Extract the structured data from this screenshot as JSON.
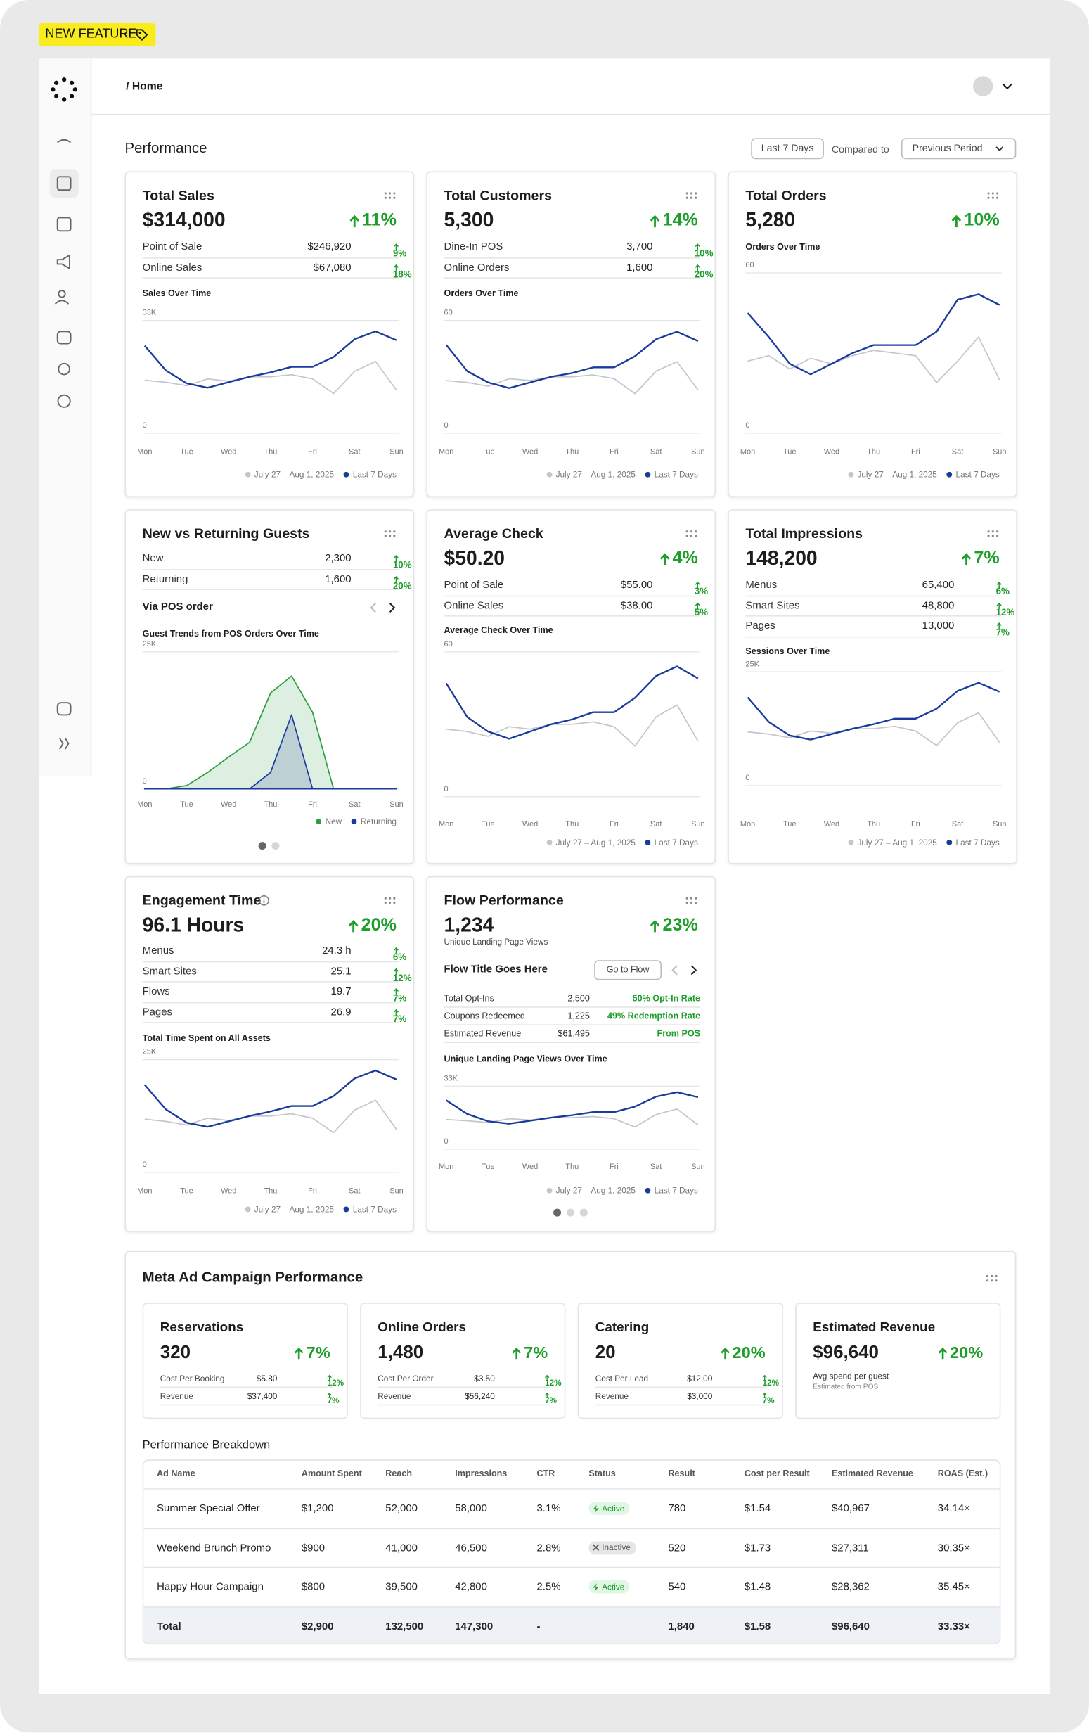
{
  "badge": "NEW FEATURE",
  "breadcrumb": "/ Home",
  "performance": {
    "title": "Performance",
    "range": "Last 7 Days",
    "compared_label": "Compared to",
    "compare": "Previous Period"
  },
  "cards": [
    {
      "title": "Total Sales",
      "value": "$314,000",
      "change": "11%",
      "rows": [
        {
          "label": "Point of Sale",
          "value": "$246,920",
          "change": "9%"
        },
        {
          "label": "Online Sales",
          "value": "$67,080",
          "change": "18%"
        }
      ],
      "chart": {
        "type": "line",
        "title": "Sales Over Time",
        "categories": [
          "Mon",
          null,
          "Tue",
          null,
          "Wed",
          null,
          "Thu",
          null,
          "Fri",
          null,
          "Sat",
          null,
          "Sun"
        ],
        "ylim": [
          0,
          33000
        ],
        "yticks": [
          0,
          {
            "value": 33000,
            "label": "33K"
          }
        ],
        "grid": true,
        "series": [
          {
            "name": "July 27 – Aug 1, 2025",
            "color": "#c3c6cc",
            "values": [
              15500,
              14900,
              13900,
              15900,
              15200,
              16500,
              16500,
              17100,
              15900,
              11600,
              18100,
              21000,
              12600
            ]
          },
          {
            "name": "Last 7 Days",
            "color": "#1a3a9c",
            "values": [
              25600,
              18400,
              14600,
              13300,
              14900,
              16500,
              17800,
              19400,
              19400,
              22300,
              27500,
              29800,
              27200
            ]
          }
        ]
      }
    },
    {
      "title": "Total Customers",
      "value": "5,300",
      "change": "14%",
      "rows": [
        {
          "label": "Dine-In POS",
          "value": "3,700",
          "change": "10%"
        },
        {
          "label": "Online Orders",
          "value": "1,600",
          "change": "20%"
        }
      ],
      "chart": {
        "type": "line",
        "title": "Orders Over Time",
        "categories": [
          "Mon",
          null,
          "Tue",
          null,
          "Wed",
          null,
          "Thu",
          null,
          "Fri",
          null,
          "Sat",
          null,
          "Sun"
        ],
        "ylim": [
          0,
          60
        ],
        "yticks": [
          0,
          60
        ],
        "grid": true,
        "series": [
          {
            "name": "July 27 – Aug 1, 2025",
            "color": "#c3c6cc",
            "values": [
              28,
              27,
              25,
              29,
              28,
              30,
              30,
              31,
              29,
              21,
              33,
              38,
              23
            ]
          },
          {
            "name": "Last 7 Days",
            "color": "#1a3a9c",
            "values": [
              47,
              33,
              27,
              24,
              27,
              30,
              32,
              35,
              35,
              41,
              50,
              54,
              49
            ]
          }
        ]
      }
    },
    {
      "title": "Total Orders",
      "value": "5,280",
      "change": "10%",
      "chart": {
        "type": "line",
        "title": "Orders Over Time",
        "categories": [
          "Mon",
          null,
          "Tue",
          null,
          "Wed",
          null,
          "Thu",
          null,
          "Fri",
          null,
          "Sat",
          null,
          "Sun"
        ],
        "ylim": [
          0,
          60
        ],
        "yticks": [
          0,
          60
        ],
        "grid": true,
        "series": [
          {
            "name": "July 27 – Aug 1, 2025",
            "color": "#c3c6cc",
            "values": [
              27,
              29,
              24,
              28,
              26,
              29,
              31,
              30,
              29,
              19,
              27,
              36,
              20
            ]
          },
          {
            "name": "Last 7 Days",
            "color": "#1a3a9c",
            "values": [
              45,
              36,
              26,
              22,
              26,
              30,
              33,
              33,
              33,
              38,
              50,
              52,
              48
            ]
          }
        ]
      }
    },
    {
      "title": "New vs Returning Guests",
      "rows": [
        {
          "label": "New",
          "value": "2,300",
          "change": "10%"
        },
        {
          "label": "Returning",
          "value": "1,600",
          "change": "20%"
        }
      ],
      "via": "Via POS order",
      "chart": {
        "type": "area",
        "title": "Guest Trends from POS Orders Over Time",
        "categories": [
          "Mon",
          null,
          "Tue",
          null,
          "Wed",
          null,
          "Thu",
          null,
          "Fri",
          null,
          "Sat",
          null,
          "Sun"
        ],
        "ylim": [
          0,
          25000
        ],
        "yticks": [
          0,
          {
            "value": 25000,
            "label": "25K"
          }
        ],
        "grid": true,
        "series": [
          {
            "name": "New",
            "color": "#2e9e3e",
            "values": [
              0,
              0,
              600,
              3000,
              5800,
              8500,
              17500,
              20600,
              14000,
              0,
              0,
              0,
              0
            ]
          },
          {
            "name": "Returning",
            "color": "#1a3a9c",
            "values": [
              0,
              0,
              0,
              0,
              0,
              0,
              3000,
              13500,
              0,
              0,
              0,
              0,
              0
            ]
          }
        ]
      }
    },
    {
      "title": "Average Check",
      "value": "$50.20",
      "change": "4%",
      "rows": [
        {
          "label": "Point of Sale",
          "value": "$55.00",
          "change": "3%"
        },
        {
          "label": "Online Sales",
          "value": "$38.00",
          "change": "5%"
        }
      ],
      "chart": {
        "type": "line",
        "title": "Average Check Over Time",
        "categories": [
          "Mon",
          null,
          "Tue",
          null,
          "Wed",
          null,
          "Thu",
          null,
          "Fri",
          null,
          "Sat",
          null,
          "Sun"
        ],
        "ylim": [
          0,
          60
        ],
        "yticks": [
          0,
          60
        ],
        "grid": true,
        "series": [
          {
            "name": "July 27 – Aug 1, 2025",
            "color": "#c3c6cc",
            "values": [
              28,
              27,
              25,
              29,
              28,
              30,
              30,
              31,
              29,
              21,
              33,
              38,
              23
            ]
          },
          {
            "name": "Last 7 Days",
            "color": "#1a3a9c",
            "values": [
              47,
              33,
              27,
              24,
              27,
              30,
              32,
              35,
              35,
              41,
              50,
              54,
              49
            ]
          }
        ]
      }
    },
    {
      "title": "Total Impressions",
      "value": "148,200",
      "change": "7%",
      "rows": [
        {
          "label": "Menus",
          "value": "65,400",
          "change": "6%"
        },
        {
          "label": "Smart Sites",
          "value": "48,800",
          "change": "12%"
        },
        {
          "label": "Pages",
          "value": "13,000",
          "change": "7%"
        }
      ],
      "chart": {
        "type": "line",
        "title": "Sessions Over Time",
        "categories": [
          "Mon",
          null,
          "Tue",
          null,
          "Wed",
          null,
          "Thu",
          null,
          "Fri",
          null,
          "Sat",
          null,
          "Sun"
        ],
        "ylim": [
          0,
          25000
        ],
        "yticks": [
          0,
          {
            "value": 25000,
            "label": "25K"
          }
        ],
        "grid": true,
        "series": [
          {
            "name": "July 27 – Aug 1, 2025",
            "color": "#c3c6cc",
            "values": [
              11800,
              11300,
              10500,
              12000,
              11500,
              12500,
              12500,
              13000,
              12000,
              8800,
              13800,
              16000,
              9500
            ]
          },
          {
            "name": "Last 7 Days",
            "color": "#1a3a9c",
            "values": [
              19400,
              14000,
              11000,
              10100,
              11300,
              12500,
              13500,
              14700,
              14700,
              16900,
              20800,
              22600,
              20600
            ]
          }
        ]
      }
    },
    {
      "title": "Engagement Time",
      "value": "96.1 Hours",
      "change": "20%",
      "rows": [
        {
          "label": "Menus",
          "value": "24.3 h",
          "change": "6%"
        },
        {
          "label": "Smart Sites",
          "value": "25.1",
          "change": "12%"
        },
        {
          "label": "Flows",
          "value": "19.7",
          "change": "7%"
        },
        {
          "label": "Pages",
          "value": "26.9",
          "change": "7%"
        }
      ],
      "chart": {
        "type": "line",
        "title": "Total Time Spent on All Assets",
        "categories": [
          "Mon",
          null,
          "Tue",
          null,
          "Wed",
          null,
          "Thu",
          null,
          "Fri",
          null,
          "Sat",
          null,
          "Sun"
        ],
        "ylim": [
          0,
          25000
        ],
        "yticks": [
          0,
          {
            "value": 25000,
            "label": "25K"
          }
        ],
        "grid": true,
        "series": [
          {
            "name": "July 27 – Aug 1, 2025",
            "color": "#c3c6cc",
            "values": [
              11800,
              11300,
              10500,
              12000,
              11500,
              12500,
              12500,
              13000,
              12000,
              8800,
              13800,
              16000,
              9500
            ]
          },
          {
            "name": "Last 7 Days",
            "color": "#1a3a9c",
            "values": [
              19400,
              14000,
              11000,
              10100,
              11300,
              12500,
              13500,
              14700,
              14700,
              16900,
              20800,
              22600,
              20600
            ]
          }
        ]
      }
    },
    {
      "title": "Flow Performance",
      "value": "1,234",
      "value_caption": "Unique Landing Page Views",
      "change": "23%",
      "flow": {
        "title": "Flow Title Goes Here",
        "button": "Go to Flow",
        "rows": [
          {
            "label": "Total Opt-Ins",
            "value": "2,500",
            "note": "50% Opt-In Rate"
          },
          {
            "label": "Coupons Redeemed",
            "value": "1,225",
            "note": "49% Redemption Rate"
          },
          {
            "label": "Estimated Revenue",
            "value": "$61,495",
            "note": "From POS"
          }
        ]
      },
      "chart": {
        "type": "line",
        "title": "Unique Landing Page Views Over Time",
        "categories": [
          "Mon",
          null,
          "Tue",
          null,
          "Wed",
          null,
          "Thu",
          null,
          "Fri",
          null,
          "Sat",
          null,
          "Sun"
        ],
        "ylim": [
          0,
          33000
        ],
        "yticks": [
          0,
          {
            "value": 33000,
            "label": "33K"
          }
        ],
        "grid": true,
        "series": [
          {
            "name": "July 27 – Aug 1, 2025",
            "color": "#c3c6cc",
            "values": [
              15500,
              14900,
              13900,
              15900,
              15200,
              16500,
              16500,
              17100,
              15900,
              11600,
              18100,
              21000,
              12600
            ]
          },
          {
            "name": "Last 7 Days",
            "color": "#1a3a9c",
            "values": [
              25600,
              18400,
              14600,
              13300,
              14900,
              16500,
              17800,
              19400,
              19400,
              22300,
              27500,
              29800,
              27200
            ]
          }
        ]
      }
    }
  ],
  "meta": {
    "title": "Meta Ad Campaign Performance",
    "boxes": [
      {
        "title": "Reservations",
        "value": "320",
        "change": "7%",
        "rows": [
          {
            "label": "Cost Per Booking",
            "value": "$5.80",
            "change": "12%"
          },
          {
            "label": "Revenue",
            "value": "$37,400",
            "change": "7%"
          }
        ]
      },
      {
        "title": "Online Orders",
        "value": "1,480",
        "change": "7%",
        "rows": [
          {
            "label": "Cost Per Order",
            "value": "$3.50",
            "change": "12%"
          },
          {
            "label": "Revenue",
            "value": "$56,240",
            "change": "7%"
          }
        ]
      },
      {
        "title": "Catering",
        "value": "20",
        "change": "20%",
        "rows": [
          {
            "label": "Cost Per Lead",
            "value": "$12.00",
            "change": "12%"
          },
          {
            "label": "Revenue",
            "value": "$3,000",
            "change": "7%"
          }
        ]
      },
      {
        "title": "Estimated Revenue",
        "value": "$96,640",
        "change": "20%",
        "notes": [
          "Avg spend per guest",
          "Estimated from POS"
        ]
      }
    ],
    "breakdown": {
      "title": "Performance Breakdown",
      "columns": [
        "Ad Name",
        "Amount Spent",
        "Reach",
        "Impressions",
        "CTR",
        "Status",
        "Result",
        "Cost per Result",
        "Estimated Revenue",
        "ROAS (Est.)"
      ],
      "rows": [
        [
          "Summer Special Offer",
          "$1,200",
          "52,000",
          "58,000",
          "3.1%",
          "Active",
          "780",
          "$1.54",
          "$40,967",
          "34.14×"
        ],
        [
          "Weekend Brunch Promo",
          "$900",
          "41,000",
          "46,500",
          "2.8%",
          "Inactive",
          "520",
          "$1.73",
          "$27,311",
          "30.35×"
        ],
        [
          "Happy Hour Campaign",
          "$800",
          "39,500",
          "42,800",
          "2.5%",
          "Active",
          "540",
          "$1.48",
          "$28,362",
          "35.45×"
        ]
      ],
      "total": [
        "Total",
        "$2,900",
        "132,500",
        "147,300",
        "-",
        null,
        "1,840",
        "$1.58",
        "$96,640",
        "33.33×"
      ]
    }
  }
}
